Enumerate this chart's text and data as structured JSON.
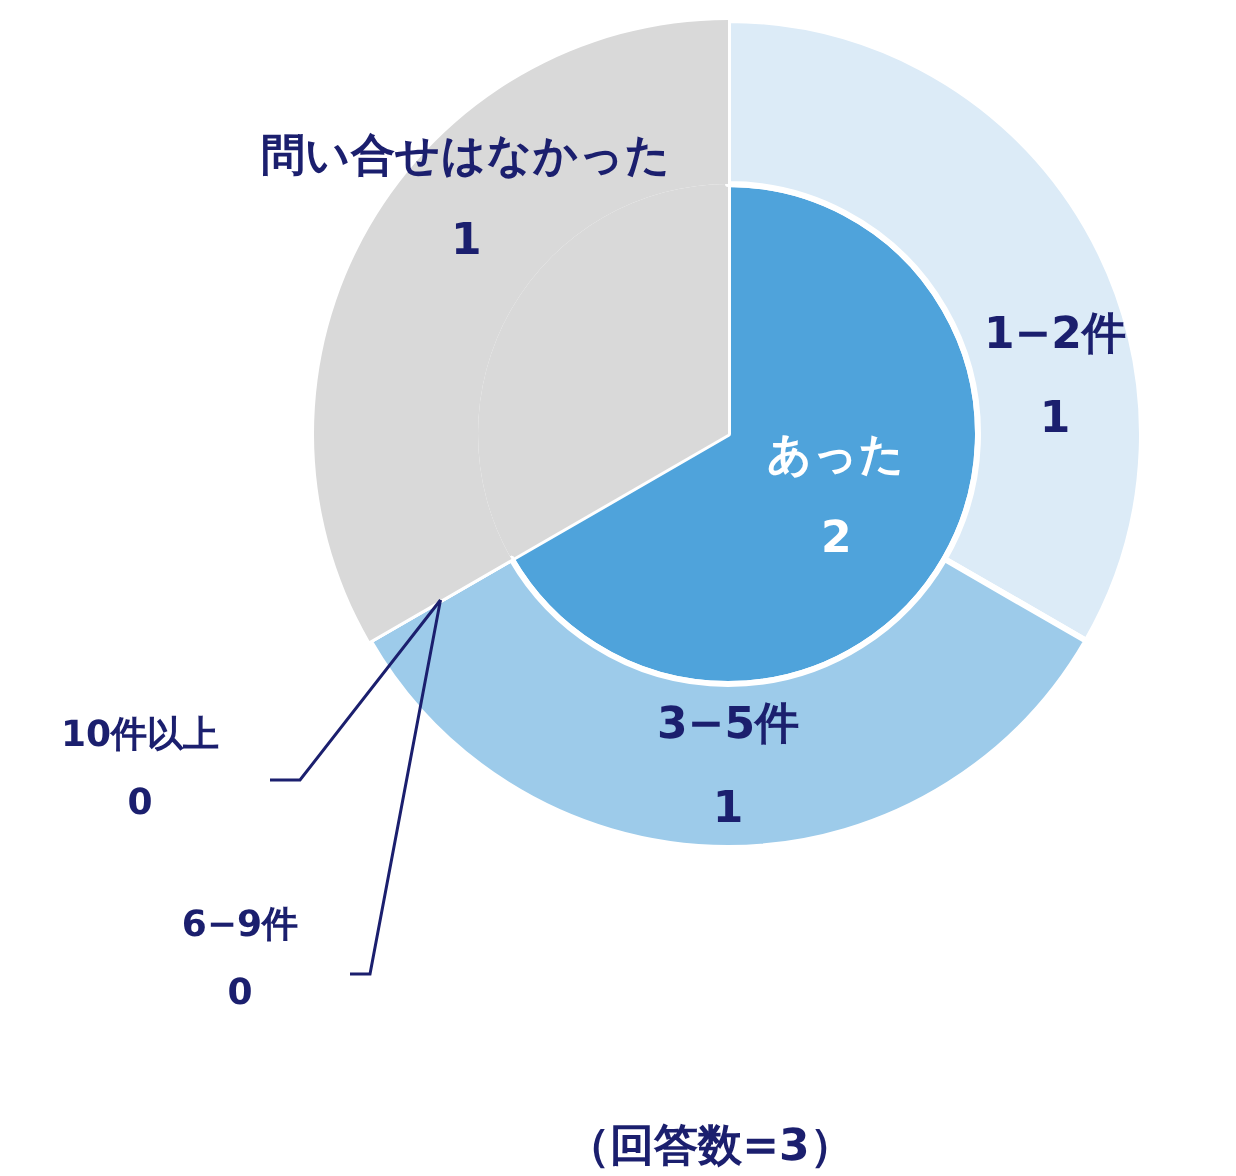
{
  "chart_data": [
    {
      "type": "pie",
      "categories": [
        "あった",
        "問い合せはなかった"
      ],
      "values": [
        2,
        1
      ],
      "colors": [
        "#4fa3db",
        "#d9d9d9"
      ],
      "data_labels": true,
      "annotations": [
        "（回答数=3）"
      ]
    },
    {
      "type": "donut",
      "categories": [
        "1−2件",
        "3−5件",
        "6−9件",
        "10件以上",
        null
      ],
      "values": [
        1,
        1,
        0,
        0,
        1
      ],
      "colors": [
        "#dcebf7",
        "#9dcbea",
        "#9dcbea",
        "#9dcbea",
        "#d9d9d9"
      ],
      "value_labels": [
        "1",
        "1",
        "0",
        "0",
        null
      ]
    }
  ]
}
